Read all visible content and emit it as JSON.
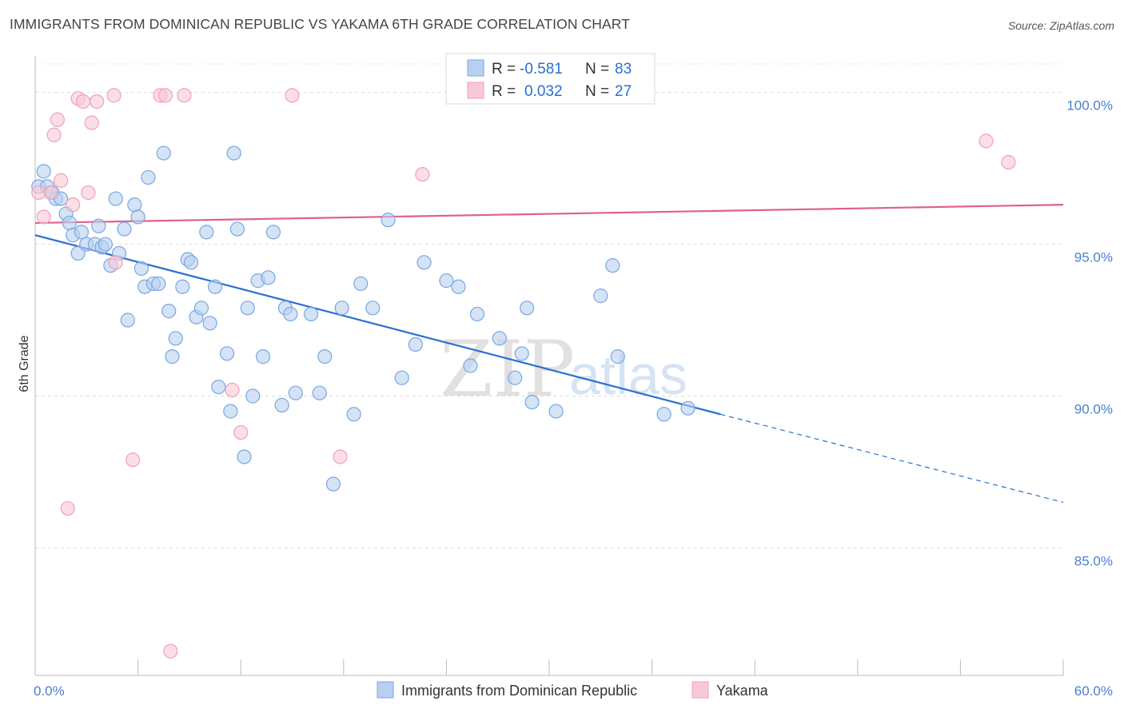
{
  "title": "IMMIGRANTS FROM DOMINICAN REPUBLIC VS YAKAMA 6TH GRADE CORRELATION CHART",
  "source": "Source: ZipAtlas.com",
  "watermark": {
    "zip": "ZIP",
    "atlas": "atlas"
  },
  "chart_data": {
    "type": "scatter",
    "xlabel": "",
    "ylabel": "6th Grade",
    "xlim": [
      0,
      60
    ],
    "ylim": [
      80.8,
      101.2
    ],
    "x_tick_labels": [
      {
        "value": 0,
        "label": "0.0%"
      },
      {
        "value": 60,
        "label": "60.0%"
      }
    ],
    "y_tick_labels": [
      {
        "value": 100,
        "label": "100.0%"
      },
      {
        "value": 95,
        "label": "95.0%"
      },
      {
        "value": 90,
        "label": "90.0%"
      },
      {
        "value": 85,
        "label": "85.0%"
      }
    ],
    "grid": true,
    "legend": {
      "placement": "top-center",
      "entries": [
        {
          "r_label": "R =",
          "r_value": "-0.581",
          "n_label": "N =",
          "n_value": "83"
        },
        {
          "r_label": "R =",
          "r_value": "0.032",
          "n_label": "N =",
          "n_value": "27"
        }
      ]
    },
    "series": [
      {
        "name": "Immigrants from Dominican Republic",
        "color": "#7aa7e0",
        "fill": "#b8d0f0",
        "trend": {
          "x0": 0,
          "y0": 95.3,
          "x1": 40,
          "y1": 89.4,
          "dash_to_x": 60,
          "dash_to_y": 86.5,
          "color": "#2a6fd0"
        },
        "points": [
          [
            0.2,
            96.9
          ],
          [
            0.5,
            97.4
          ],
          [
            0.7,
            96.9
          ],
          [
            1.0,
            96.7
          ],
          [
            1.2,
            96.5
          ],
          [
            1.5,
            96.5
          ],
          [
            1.8,
            96.0
          ],
          [
            2.0,
            95.7
          ],
          [
            2.2,
            95.3
          ],
          [
            2.5,
            94.7
          ],
          [
            2.7,
            95.4
          ],
          [
            3.0,
            95.0
          ],
          [
            3.5,
            95.0
          ],
          [
            3.7,
            95.6
          ],
          [
            3.9,
            94.9
          ],
          [
            4.1,
            95.0
          ],
          [
            4.4,
            94.3
          ],
          [
            4.7,
            96.5
          ],
          [
            4.9,
            94.7
          ],
          [
            5.2,
            95.5
          ],
          [
            5.4,
            92.5
          ],
          [
            5.8,
            96.3
          ],
          [
            6.0,
            95.9
          ],
          [
            6.2,
            94.2
          ],
          [
            6.4,
            93.6
          ],
          [
            6.6,
            97.2
          ],
          [
            6.9,
            93.7
          ],
          [
            7.2,
            93.7
          ],
          [
            7.5,
            98.0
          ],
          [
            7.8,
            92.8
          ],
          [
            8.0,
            91.3
          ],
          [
            8.2,
            91.9
          ],
          [
            8.6,
            93.6
          ],
          [
            8.9,
            94.5
          ],
          [
            9.1,
            94.4
          ],
          [
            9.4,
            92.6
          ],
          [
            9.7,
            92.9
          ],
          [
            10.0,
            95.4
          ],
          [
            10.2,
            92.4
          ],
          [
            10.5,
            93.6
          ],
          [
            10.7,
            90.3
          ],
          [
            11.2,
            91.4
          ],
          [
            11.4,
            89.5
          ],
          [
            11.6,
            98.0
          ],
          [
            11.8,
            95.5
          ],
          [
            12.2,
            88.0
          ],
          [
            12.4,
            92.9
          ],
          [
            12.7,
            90.0
          ],
          [
            13.0,
            93.8
          ],
          [
            13.3,
            91.3
          ],
          [
            13.6,
            93.9
          ],
          [
            13.9,
            95.4
          ],
          [
            14.4,
            89.7
          ],
          [
            14.6,
            92.9
          ],
          [
            14.9,
            92.7
          ],
          [
            15.2,
            90.1
          ],
          [
            16.1,
            92.7
          ],
          [
            16.6,
            90.1
          ],
          [
            16.9,
            91.3
          ],
          [
            17.4,
            87.1
          ],
          [
            17.9,
            92.9
          ],
          [
            18.6,
            89.4
          ],
          [
            19.0,
            93.7
          ],
          [
            19.7,
            92.9
          ],
          [
            20.6,
            95.8
          ],
          [
            21.4,
            90.6
          ],
          [
            22.2,
            91.7
          ],
          [
            22.7,
            94.4
          ],
          [
            24.0,
            93.8
          ],
          [
            24.7,
            93.6
          ],
          [
            25.4,
            91.0
          ],
          [
            25.8,
            92.7
          ],
          [
            27.1,
            91.9
          ],
          [
            28.0,
            90.6
          ],
          [
            28.4,
            91.4
          ],
          [
            28.7,
            92.9
          ],
          [
            29.0,
            89.8
          ],
          [
            30.4,
            89.5
          ],
          [
            33.0,
            93.3
          ],
          [
            33.7,
            94.3
          ],
          [
            34.0,
            91.3
          ],
          [
            36.7,
            89.4
          ],
          [
            38.1,
            89.6
          ]
        ]
      },
      {
        "name": "Yakama",
        "color": "#f0a0b8",
        "fill": "#f8c8d6",
        "trend": {
          "x0": 0,
          "y0": 95.7,
          "x1": 60,
          "y1": 96.3,
          "color": "#e0608a"
        },
        "points": [
          [
            0.2,
            96.7
          ],
          [
            0.5,
            95.9
          ],
          [
            0.9,
            96.7
          ],
          [
            1.1,
            98.6
          ],
          [
            1.3,
            99.1
          ],
          [
            1.5,
            97.1
          ],
          [
            1.9,
            86.3
          ],
          [
            2.2,
            96.3
          ],
          [
            2.5,
            99.8
          ],
          [
            2.8,
            99.7
          ],
          [
            3.1,
            96.7
          ],
          [
            3.3,
            99.0
          ],
          [
            3.6,
            99.7
          ],
          [
            4.6,
            99.9
          ],
          [
            4.7,
            94.4
          ],
          [
            5.7,
            87.9
          ],
          [
            7.3,
            99.9
          ],
          [
            7.6,
            99.9
          ],
          [
            7.9,
            81.6
          ],
          [
            8.7,
            99.9
          ],
          [
            11.5,
            90.2
          ],
          [
            12.0,
            88.8
          ],
          [
            15.0,
            99.9
          ],
          [
            17.8,
            88.0
          ],
          [
            22.6,
            97.3
          ],
          [
            55.5,
            98.4
          ],
          [
            56.8,
            97.7
          ]
        ]
      }
    ]
  }
}
